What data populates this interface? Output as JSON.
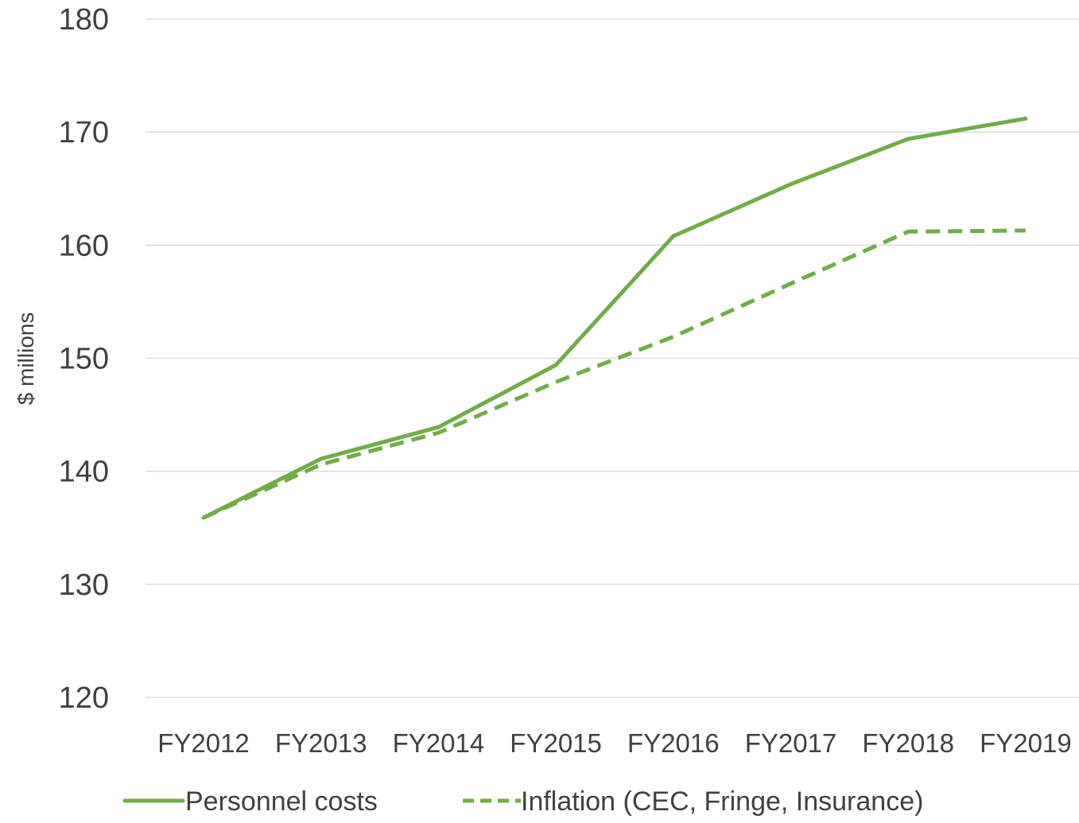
{
  "chart_data": {
    "type": "line",
    "title": "",
    "xlabel": "",
    "ylabel": "$ millions",
    "categories": [
      "FY2012",
      "FY2013",
      "FY2014",
      "FY2015",
      "FY2016",
      "FY2017",
      "FY2018",
      "FY2019"
    ],
    "ylim": [
      120,
      180
    ],
    "yticks": [
      120,
      130,
      140,
      150,
      160,
      170,
      180
    ],
    "grid": "horizontal",
    "legend_position": "bottom",
    "series": [
      {
        "name": "Personnel costs",
        "style": "solid",
        "color": "#70ad47",
        "values": [
          135.9,
          141.1,
          143.9,
          149.4,
          160.8,
          165.4,
          169.4,
          171.2
        ]
      },
      {
        "name": "Inflation (CEC, Fringe, Insurance)",
        "style": "dashed",
        "color": "#70ad47",
        "values": [
          135.9,
          140.6,
          143.4,
          147.9,
          151.9,
          156.6,
          161.2,
          161.3
        ]
      }
    ]
  }
}
